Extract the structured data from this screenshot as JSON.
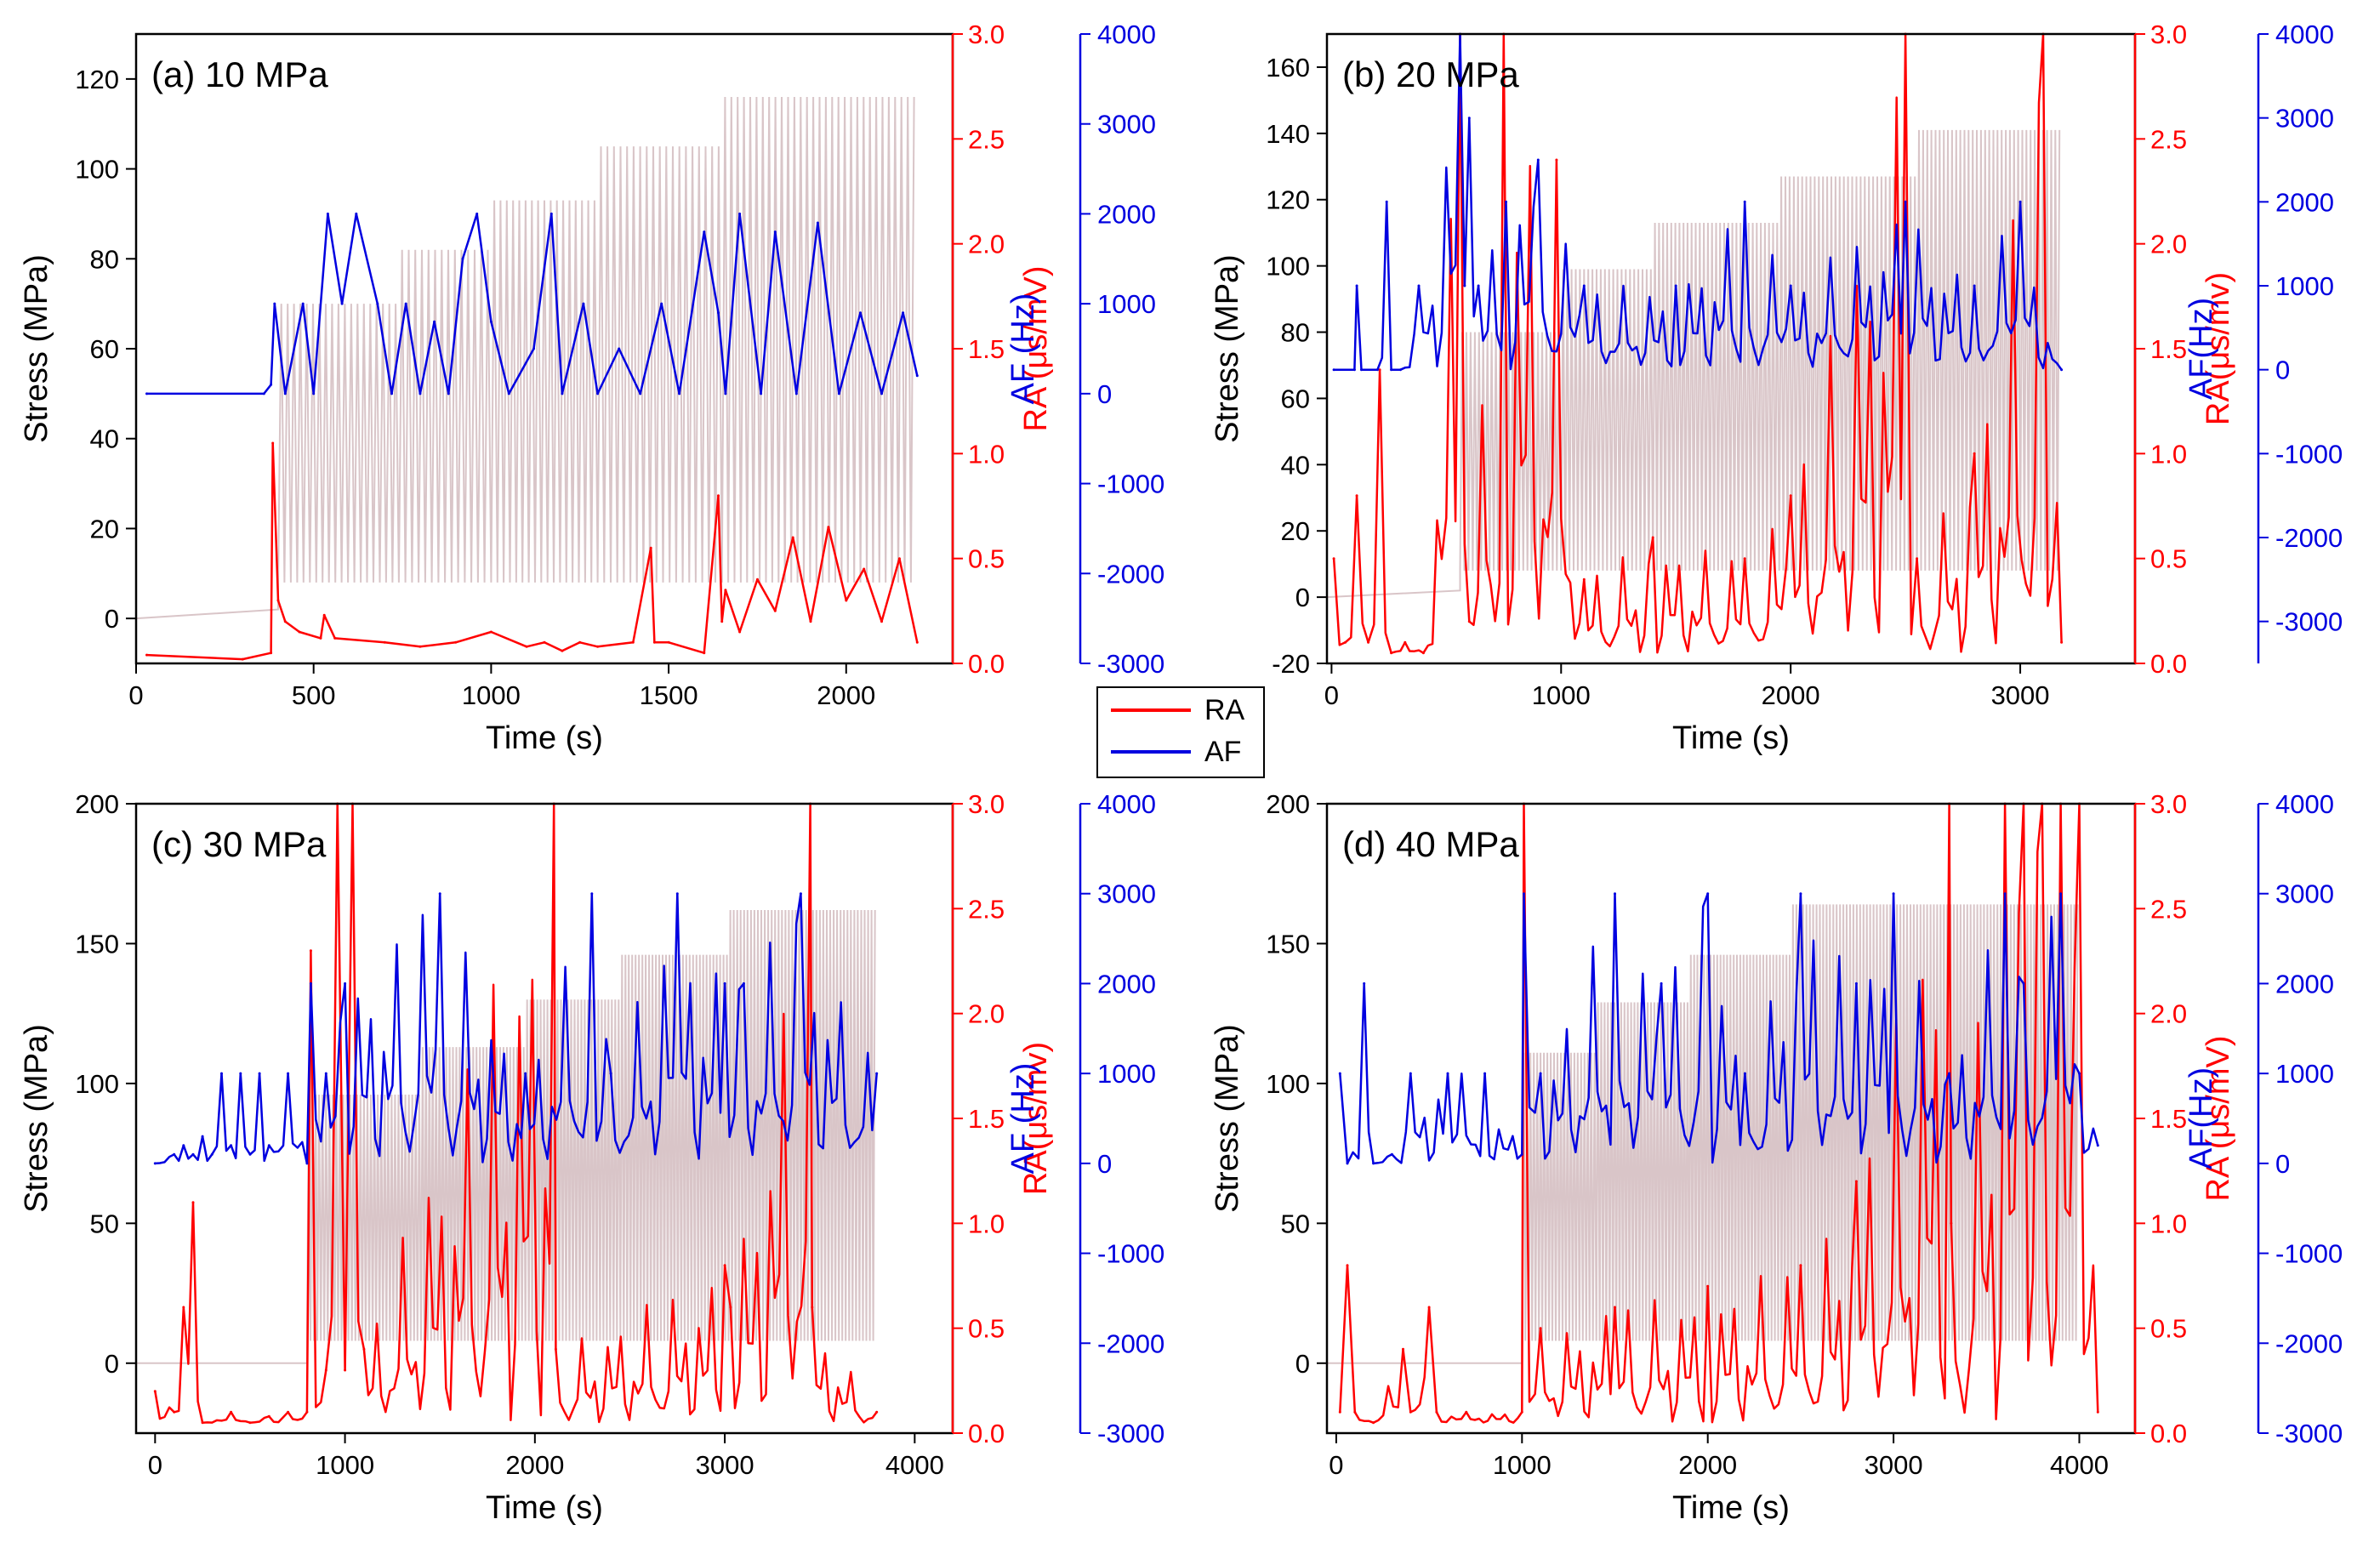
{
  "colors": {
    "stress": "#d9c5c8",
    "ra": "#ff0000",
    "af": "#0000e0",
    "axis": "#000000"
  },
  "legend": {
    "items": [
      {
        "label": "RA",
        "color": "#ff0000"
      },
      {
        "label": "AF",
        "color": "#0000e0"
      }
    ]
  },
  "chart_data": [
    {
      "type": "line",
      "panel_label": "(a) 10 MPa",
      "xlabel": "Time (s)",
      "xlim": [
        0,
        2300
      ],
      "xticks": [
        0,
        500,
        1000,
        1500,
        2000
      ],
      "y_left": {
        "label": "Stress (MPa)",
        "lim": [
          -10,
          130
        ],
        "ticks": [
          0,
          20,
          40,
          60,
          80,
          100,
          120
        ]
      },
      "y_ra": {
        "label": "RA (μs/mV)",
        "lim": [
          0,
          3.0
        ],
        "ticks": [
          "0.0",
          "0.5",
          "1.0",
          "1.5",
          "2.0",
          "2.5",
          "3.0"
        ]
      },
      "y_af": {
        "label": "AF (Hz)",
        "lim": [
          -3000,
          4000
        ],
        "ticks": [
          -3000,
          -2000,
          -1000,
          0,
          1000,
          2000,
          3000,
          4000
        ]
      },
      "series": [
        {
          "name": "RA",
          "axis": "ra",
          "x": [
            30,
            300,
            380,
            385,
            400,
            420,
            460,
            520,
            530,
            560,
            700,
            800,
            900,
            1000,
            1100,
            1150,
            1200,
            1250,
            1300,
            1400,
            1450,
            1460,
            1500,
            1600,
            1640,
            1650,
            1660,
            1700,
            1750,
            1800,
            1850,
            1900,
            1950,
            2000,
            2050,
            2100,
            2150,
            2200
          ],
          "y": [
            0.04,
            0.02,
            0.05,
            1.05,
            0.3,
            0.2,
            0.15,
            0.12,
            0.23,
            0.12,
            0.1,
            0.08,
            0.1,
            0.15,
            0.08,
            0.1,
            0.06,
            0.1,
            0.08,
            0.1,
            0.55,
            0.1,
            0.1,
            0.05,
            0.8,
            0.2,
            0.35,
            0.15,
            0.4,
            0.25,
            0.6,
            0.2,
            0.65,
            0.3,
            0.45,
            0.2,
            0.5,
            0.1
          ]
        },
        {
          "name": "AF",
          "axis": "af",
          "x": [
            30,
            360,
            380,
            390,
            420,
            470,
            500,
            540,
            580,
            620,
            680,
            720,
            760,
            800,
            840,
            880,
            920,
            960,
            1000,
            1050,
            1120,
            1170,
            1200,
            1260,
            1300,
            1360,
            1420,
            1480,
            1530,
            1600,
            1640,
            1660,
            1700,
            1760,
            1800,
            1860,
            1920,
            1980,
            2040,
            2100,
            2160,
            2200
          ],
          "y": [
            0,
            0,
            100,
            1000,
            0,
            1000,
            0,
            2000,
            1000,
            2000,
            1000,
            0,
            1000,
            0,
            800,
            0,
            1500,
            2000,
            800,
            0,
            500,
            2000,
            0,
            1000,
            0,
            500,
            0,
            1000,
            0,
            1800,
            900,
            0,
            2000,
            0,
            1800,
            0,
            1900,
            0,
            900,
            0,
            900,
            200
          ]
        },
        {
          "name": "Stress",
          "axis": "stress",
          "segments": [
            [
              400,
              740,
              70
            ],
            [
              740,
              1000,
              82
            ],
            [
              1000,
              1300,
              93
            ],
            [
              1300,
              1650,
              105
            ],
            [
              1650,
              2200,
              116
            ]
          ],
          "min": 8,
          "preload": [
            0,
            2
          ]
        }
      ]
    },
    {
      "type": "line",
      "panel_label": "(b) 20 MPa",
      "xlabel": "Time (s)",
      "xlim": [
        -20,
        3500
      ],
      "xticks": [
        0,
        1000,
        2000,
        3000
      ],
      "y_left": {
        "label": "Stress (MPa)",
        "lim": [
          -20,
          170
        ],
        "ticks": [
          -20,
          0,
          20,
          40,
          60,
          80,
          100,
          120,
          140,
          160
        ]
      },
      "y_ra": {
        "label": "RA(μs/mv)",
        "lim": [
          0,
          3.0
        ],
        "ticks": [
          "0.0",
          "0.5",
          "1.0",
          "1.5",
          "2.0",
          "2.5",
          "3.0"
        ]
      },
      "y_af": {
        "label": "AF(Hz)",
        "lim": [
          -3500,
          4000
        ],
        "ticks": [
          -3000,
          -2000,
          -1000,
          0,
          1000,
          2000,
          3000,
          4000
        ]
      },
      "series": [
        {
          "name": "RA",
          "axis": "ra",
          "x": [
            10,
            60,
            110,
            160,
            210,
            260,
            320,
            400,
            560,
            600,
            750,
            980,
            1100,
            1400,
            1800,
            2000,
            2500,
            2550,
            2800,
            3100,
            3180
          ],
          "y": [
            0.5,
            0.1,
            0.8,
            0.1,
            1.4,
            0.05,
            0.1,
            0.05,
            3.0,
            0.2,
            3.0,
            2.4,
            0.4,
            0.6,
            0.5,
            0.8,
            3.0,
            0.5,
            1.0,
            3.0,
            0.1
          ]
        },
        {
          "name": "AF",
          "axis": "af",
          "x": [
            10,
            100,
            110,
            130,
            200,
            240,
            260,
            300,
            380,
            560,
            580,
            600,
            640,
            760,
            900,
            1100,
            1500,
            1800,
            2000,
            2500,
            2800,
            3000,
            3180
          ],
          "y": [
            0,
            0,
            1000,
            0,
            0,
            2000,
            0,
            0,
            1000,
            4000,
            1000,
            3000,
            1000,
            2000,
            2500,
            1000,
            1000,
            2000,
            1000,
            2000,
            1000,
            2000,
            0
          ]
        },
        {
          "name": "Stress",
          "axis": "stress",
          "segments": [
            [
              560,
              1000,
              80
            ],
            [
              1000,
              1400,
              99
            ],
            [
              1400,
              1950,
              113
            ],
            [
              1950,
              2550,
              127
            ],
            [
              2550,
              3180,
              141
            ]
          ],
          "min": 8,
          "preload": [
            0,
            2
          ]
        }
      ]
    },
    {
      "type": "line",
      "panel_label": "(c) 30 MPa",
      "xlabel": "Time (s)",
      "xlim": [
        -100,
        4200
      ],
      "xticks": [
        0,
        1000,
        2000,
        3000,
        4000
      ],
      "y_left": {
        "label": "Stress (MPa)",
        "lim": [
          -25,
          200
        ],
        "ticks": [
          0,
          50,
          100,
          150,
          200
        ]
      },
      "y_ra": {
        "label": "RA(μs/mv)",
        "lim": [
          0,
          3.0
        ],
        "ticks": [
          "0.0",
          "0.5",
          "1.0",
          "1.5",
          "2.0",
          "2.5",
          "3.0"
        ]
      },
      "y_af": {
        "label": "AF (Hz)",
        "lim": [
          -3000,
          4000
        ],
        "ticks": [
          -3000,
          -2000,
          -1000,
          0,
          1000,
          2000,
          3000,
          4000
        ]
      },
      "series": [
        {
          "name": "RA",
          "axis": "ra",
          "x": [
            0,
            100,
            150,
            200,
            250,
            400,
            500,
            600,
            700,
            800,
            820,
            900,
            960,
            1000,
            1040,
            1100,
            2100,
            2110,
            3000,
            3030,
            3450,
            3460,
            3800
          ],
          "y": [
            0.2,
            0.1,
            0.6,
            1.1,
            0.05,
            0.1,
            0.05,
            0.08,
            0.1,
            0.1,
            2.3,
            0.3,
            3.0,
            0.3,
            3.0,
            0.4,
            3.0,
            0.4,
            0.8,
            0.6,
            3.0,
            0.6,
            0.1
          ]
        },
        {
          "name": "AF",
          "axis": "af",
          "x": [
            0,
            100,
            150,
            200,
            250,
            300,
            350,
            400,
            450,
            500,
            550,
            600,
            700,
            800,
            820,
            900,
            1000,
            1500,
            1950,
            2300,
            2400,
            2750,
            3000,
            3100,
            3400,
            3800
          ],
          "y": [
            0,
            100,
            200,
            100,
            300,
            100,
            1000,
            200,
            1000,
            100,
            1000,
            200,
            1000,
            0,
            2000,
            1000,
            2000,
            3000,
            1000,
            3000,
            1000,
            3000,
            2000,
            2000,
            3000,
            1000
          ]
        },
        {
          "name": "Stress",
          "axis": "stress",
          "segments": [
            [
              800,
              1400,
              96
            ],
            [
              1400,
              1950,
              113
            ],
            [
              1950,
              2450,
              130
            ],
            [
              2450,
              3020,
              146
            ],
            [
              3020,
              3800,
              162
            ]
          ],
          "min": 8,
          "preload": [
            0,
            0
          ]
        }
      ]
    },
    {
      "type": "line",
      "panel_label": "(d) 40 MPa",
      "xlabel": "Time (s)",
      "xlim": [
        -50,
        4300
      ],
      "xticks": [
        0,
        1000,
        2000,
        3000,
        4000
      ],
      "y_left": {
        "label": "Stress (MPa)",
        "lim": [
          -25,
          200
        ],
        "ticks": [
          0,
          50,
          100,
          150,
          200
        ]
      },
      "y_ra": {
        "label": "RA (μs/mV)",
        "lim": [
          0,
          3.0
        ],
        "ticks": [
          "0.0",
          "0.5",
          "1.0",
          "1.5",
          "2.0",
          "2.5",
          "3.0"
        ]
      },
      "y_af": {
        "label": "AF(Hz)",
        "lim": [
          -3000,
          4000
        ],
        "ticks": [
          -3000,
          -2000,
          -1000,
          0,
          1000,
          2000,
          3000,
          4000
        ]
      },
      "series": [
        {
          "name": "RA",
          "axis": "ra",
          "x": [
            20,
            60,
            100,
            200,
            360,
            400,
            500,
            540,
            700,
            1000,
            1010,
            1100,
            1500,
            2000,
            2500,
            2800,
            3300,
            3310,
            3600,
            3700,
            3800,
            3900,
            4000,
            4100
          ],
          "y": [
            0.1,
            0.8,
            0.1,
            0.05,
            0.4,
            0.1,
            0.6,
            0.1,
            0.1,
            0.1,
            3.0,
            0.5,
            0.6,
            0.7,
            0.8,
            1.2,
            3.0,
            1.0,
            3.0,
            3.0,
            3.0,
            3.0,
            3.0,
            0.1
          ]
        },
        {
          "name": "AF",
          "axis": "af",
          "x": [
            20,
            60,
            150,
            200,
            300,
            400,
            600,
            800,
            1000,
            1010,
            1100,
            1500,
            1750,
            2000,
            2200,
            2500,
            2800,
            3000,
            3300,
            3600,
            3700,
            3900,
            4000,
            4100
          ],
          "y": [
            1000,
            0,
            2000,
            0,
            100,
            1000,
            1000,
            1000,
            100,
            3000,
            1000,
            3000,
            2000,
            3000,
            1000,
            3000,
            2000,
            3000,
            1000,
            3000,
            2000,
            3000,
            1000,
            200
          ]
        },
        {
          "name": "Stress",
          "axis": "stress",
          "segments": [
            [
              1000,
              1400,
              111
            ],
            [
              1400,
              1900,
              129
            ],
            [
              1900,
              2450,
              146
            ],
            [
              2450,
              3100,
              164
            ],
            [
              3100,
              4000,
              164
            ]
          ],
          "min": 8,
          "preload": [
            0,
            0
          ]
        }
      ]
    }
  ]
}
